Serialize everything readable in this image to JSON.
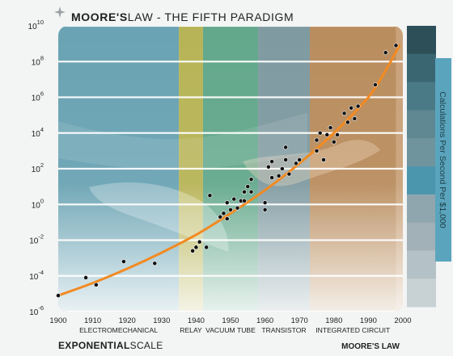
{
  "chart_data": {
    "type": "scatter",
    "title_bold": "MOORE'S",
    "title_rest": "LAW - THE FIFTH PARADIGM",
    "footer_left_bold": "EXPONENTIAL",
    "footer_left_rest": "SCALE",
    "footer_right": "MOORE'S LAW",
    "ylabel": "Calculations Per Second Per $1,000",
    "yscale": "log",
    "xlim": [
      1900,
      2000
    ],
    "ylim_exponent": [
      -6,
      10
    ],
    "x_ticks": [
      "1900",
      "1910",
      "1920",
      "1930",
      "1940",
      "1950",
      "1960",
      "1970",
      "1980",
      "1990",
      "2000"
    ],
    "y_ticks": [
      {
        "base": "10",
        "exp": "-6"
      },
      {
        "base": "10",
        "exp": "-4"
      },
      {
        "base": "10",
        "exp": "-2"
      },
      {
        "base": "10",
        "exp": "0"
      },
      {
        "base": "10",
        "exp": "2"
      },
      {
        "base": "10",
        "exp": "4"
      },
      {
        "base": "10",
        "exp": "6"
      },
      {
        "base": "10",
        "exp": "8"
      },
      {
        "base": "10",
        "exp": "10"
      }
    ],
    "paradigms": [
      {
        "label": "ELECTROMECHANICAL",
        "start": 1900,
        "end": 1935,
        "color": "#6aa3b3"
      },
      {
        "label": "RELAY",
        "start": 1935,
        "end": 1942,
        "color": "#b7b457"
      },
      {
        "label": "VACUUM TUBE",
        "start": 1942,
        "end": 1958,
        "color": "#63a88c"
      },
      {
        "label": "TRANSISTOR",
        "start": 1958,
        "end": 1973,
        "color": "#7f9aa1"
      },
      {
        "label": "INTEGRATED CIRCUIT",
        "start": 1973,
        "end": 1998,
        "color": "#b98d5e"
      }
    ],
    "points": [
      {
        "x": 1900,
        "y": -5.1
      },
      {
        "x": 1908,
        "y": -4.1
      },
      {
        "x": 1911,
        "y": -4.5
      },
      {
        "x": 1919,
        "y": -3.2
      },
      {
        "x": 1928,
        "y": -3.3
      },
      {
        "x": 1939,
        "y": -2.6
      },
      {
        "x": 1940,
        "y": -2.4
      },
      {
        "x": 1941,
        "y": -2.1
      },
      {
        "x": 1943,
        "y": -2.4
      },
      {
        "x": 1944,
        "y": 0.5
      },
      {
        "x": 1947,
        "y": -0.7
      },
      {
        "x": 1948,
        "y": -0.5
      },
      {
        "x": 1949,
        "y": -0.8
      },
      {
        "x": 1949,
        "y": 0.1
      },
      {
        "x": 1950,
        "y": -0.3
      },
      {
        "x": 1951,
        "y": 0.3
      },
      {
        "x": 1952,
        "y": -0.2
      },
      {
        "x": 1953,
        "y": 0.2
      },
      {
        "x": 1954,
        "y": 0.7
      },
      {
        "x": 1954,
        "y": 0.2
      },
      {
        "x": 1955,
        "y": 1.0
      },
      {
        "x": 1956,
        "y": 1.4
      },
      {
        "x": 1956,
        "y": 0.7
      },
      {
        "x": 1960,
        "y": -0.3
      },
      {
        "x": 1960,
        "y": 0.1
      },
      {
        "x": 1961,
        "y": 2.1
      },
      {
        "x": 1962,
        "y": 1.5
      },
      {
        "x": 1962,
        "y": 2.4
      },
      {
        "x": 1964,
        "y": 1.6
      },
      {
        "x": 1965,
        "y": 2.0
      },
      {
        "x": 1966,
        "y": 2.5
      },
      {
        "x": 1966,
        "y": 3.2
      },
      {
        "x": 1967,
        "y": 1.7
      },
      {
        "x": 1969,
        "y": 2.3
      },
      {
        "x": 1970,
        "y": 2.5
      },
      {
        "x": 1975,
        "y": 3.0
      },
      {
        "x": 1975,
        "y": 3.6
      },
      {
        "x": 1976,
        "y": 4.0
      },
      {
        "x": 1977,
        "y": 2.5
      },
      {
        "x": 1978,
        "y": 3.9
      },
      {
        "x": 1979,
        "y": 4.3
      },
      {
        "x": 1980,
        "y": 3.5
      },
      {
        "x": 1981,
        "y": 3.9
      },
      {
        "x": 1983,
        "y": 5.1
      },
      {
        "x": 1984,
        "y": 4.6
      },
      {
        "x": 1985,
        "y": 5.4
      },
      {
        "x": 1986,
        "y": 4.8
      },
      {
        "x": 1987,
        "y": 5.5
      },
      {
        "x": 1992,
        "y": 6.7
      },
      {
        "x": 1995,
        "y": 8.5
      },
      {
        "x": 1998,
        "y": 8.9
      }
    ],
    "trend": [
      {
        "x": 1900,
        "y": -5.1
      },
      {
        "x": 1910,
        "y": -4.4
      },
      {
        "x": 1920,
        "y": -3.6
      },
      {
        "x": 1930,
        "y": -2.7
      },
      {
        "x": 1940,
        "y": -1.7
      },
      {
        "x": 1950,
        "y": -0.5
      },
      {
        "x": 1960,
        "y": 0.8
      },
      {
        "x": 1970,
        "y": 2.3
      },
      {
        "x": 1980,
        "y": 4.0
      },
      {
        "x": 1990,
        "y": 6.0
      },
      {
        "x": 1995,
        "y": 7.5
      },
      {
        "x": 1999,
        "y": 8.9
      }
    ],
    "colors": {
      "trend": "#f28a22",
      "point": "#111111",
      "legend_scale": [
        "#2c4f58",
        "#3a6672",
        "#4a7a86",
        "#5f8893",
        "#6f949e",
        "#4c96ad",
        "#8fa6ae",
        "#a1b1b7",
        "#b4c1c6",
        "#c8d2d5"
      ]
    }
  }
}
